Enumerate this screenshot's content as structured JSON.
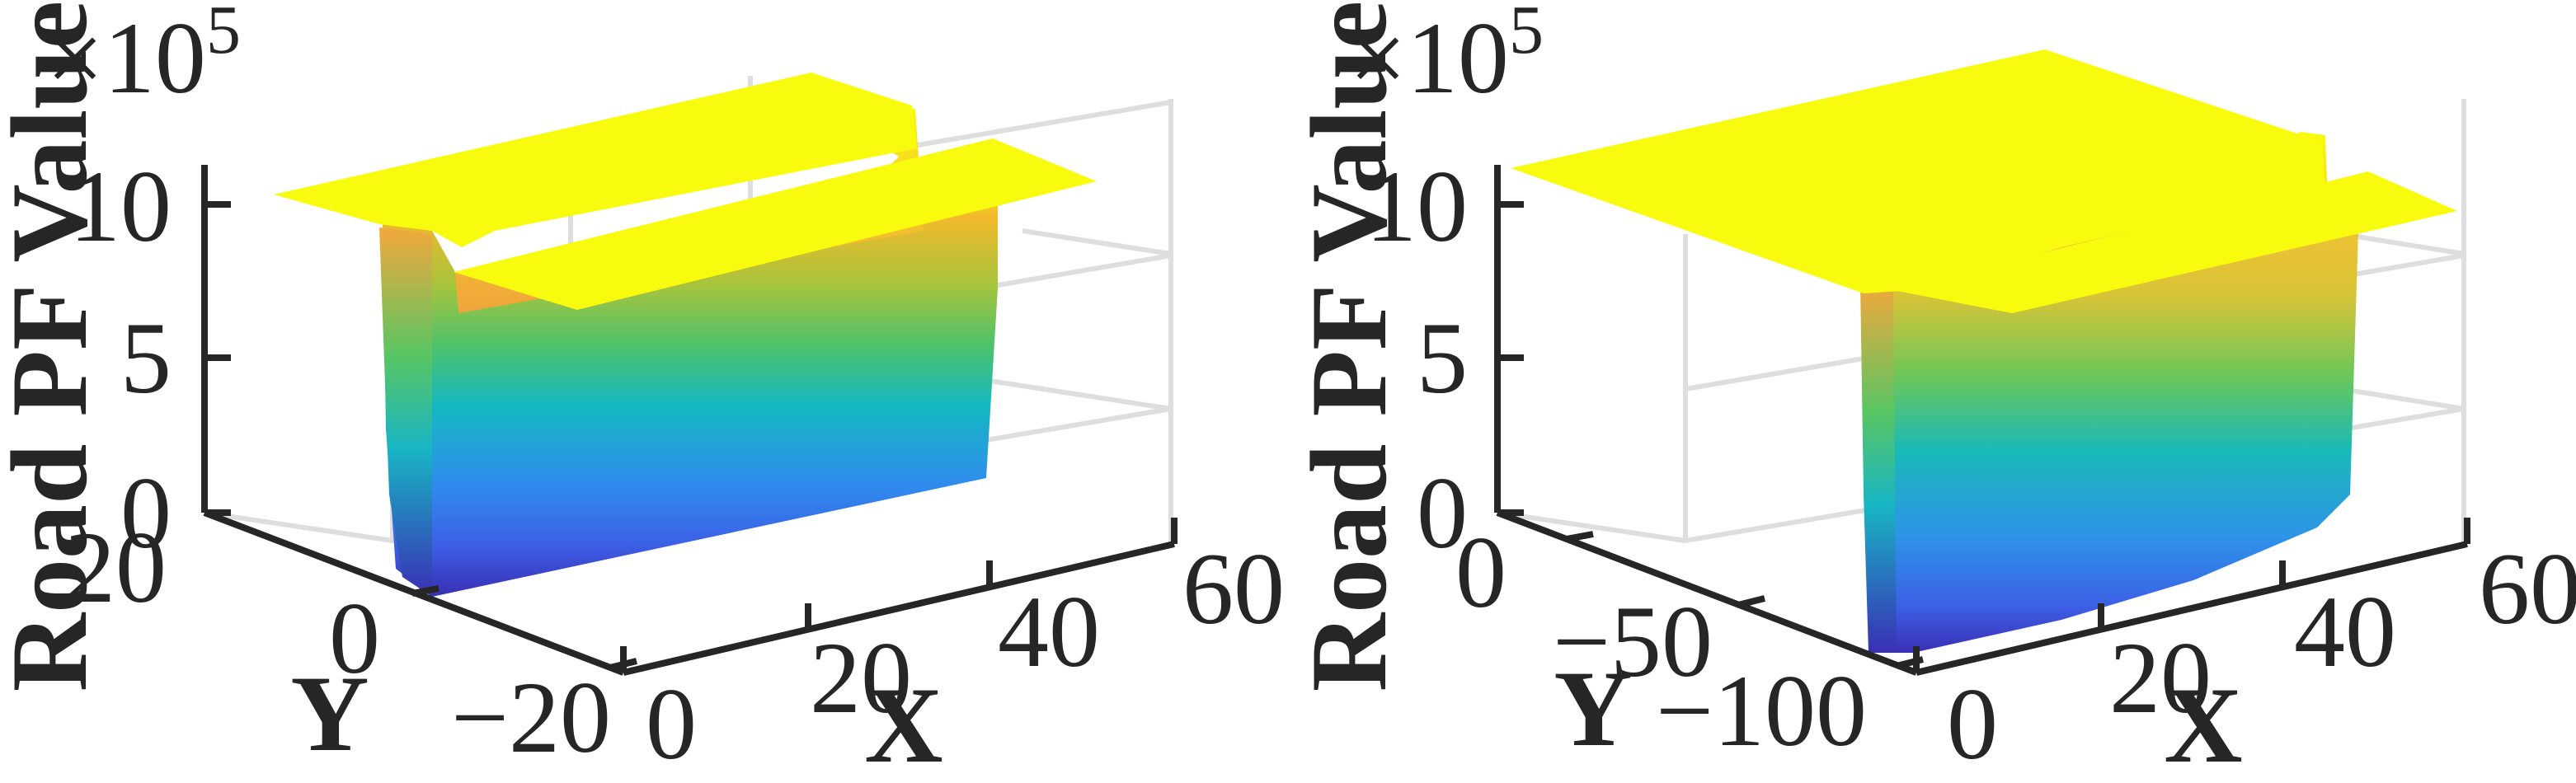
{
  "chart_data": [
    {
      "type": "surface",
      "zlabel": "Road PF Value",
      "xlabel": "X",
      "ylabel": "Y",
      "z_multiplier": "×10",
      "z_multiplier_exp": "5",
      "x_ticks": [
        "0",
        "20",
        "40",
        "60"
      ],
      "y_ticks": [
        "20",
        "0",
        "−20"
      ],
      "z_ticks": [
        "0",
        "5",
        "10"
      ],
      "xlim": [
        0,
        60
      ],
      "ylim": [
        -25,
        25
      ],
      "zlim": [
        0,
        1100000
      ],
      "grid": true,
      "colormap": "parula",
      "description_values": {
        "plateau_z": 1000000,
        "lane_dividing_ridge": true
      }
    },
    {
      "type": "surface",
      "zlabel": "Road PF Value",
      "xlabel": "X",
      "ylabel": "Y",
      "z_multiplier": "×10",
      "z_multiplier_exp": "5",
      "x_ticks": [
        "0",
        "20",
        "40",
        "60"
      ],
      "y_ticks": [
        "0",
        "−50",
        "−100"
      ],
      "z_ticks": [
        "0",
        "5",
        "10"
      ],
      "xlim": [
        0,
        60
      ],
      "ylim": [
        -110,
        10
      ],
      "zlim": [
        0,
        1100000
      ],
      "grid": true,
      "colormap": "parula",
      "description_values": {
        "plateau_z": 1000000,
        "curved_road": true
      }
    }
  ],
  "colors": {
    "yellow": "#f9fb0e",
    "orange": "#f3b92a",
    "green": "#4cc26c",
    "cyan": "#14b8c2",
    "blue": "#3c7bf3",
    "navy": "#3a2fb5",
    "axis": "#262626",
    "grid": "#dedede"
  }
}
